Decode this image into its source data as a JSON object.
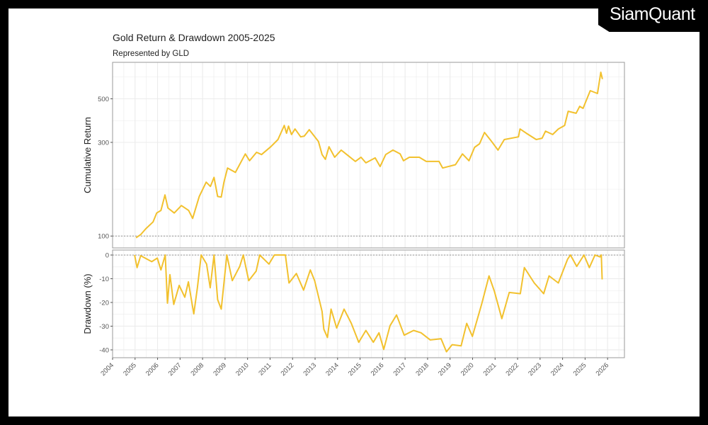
{
  "logo": {
    "text": "SiamQuant"
  },
  "chart_data": [
    {
      "type": "line",
      "title": "Gold Return & Drawdown 2005-2025",
      "subtitle": "Represented by GLD",
      "ylabel": "Cumulative Return",
      "xlabel": "",
      "yscale": "log",
      "ylim": [
        87,
        767
      ],
      "xlim": [
        2004,
        2026.75
      ],
      "yticks": [
        100,
        300,
        500
      ],
      "reference_line": 100,
      "grid": true,
      "color": "#F2C12E",
      "x": [
        2005.04,
        2005.26,
        2005.48,
        2005.8,
        2005.96,
        2006.15,
        2006.33,
        2006.46,
        2006.74,
        2007.06,
        2007.38,
        2007.56,
        2007.85,
        2008.16,
        2008.35,
        2008.51,
        2008.67,
        2008.83,
        2008.95,
        2009.11,
        2009.46,
        2009.9,
        2010.09,
        2010.4,
        2010.62,
        2011.03,
        2011.35,
        2011.63,
        2011.73,
        2011.82,
        2011.95,
        2012.11,
        2012.36,
        2012.52,
        2012.74,
        2013.15,
        2013.31,
        2013.46,
        2013.62,
        2013.87,
        2014.16,
        2014.41,
        2014.79,
        2015.04,
        2015.26,
        2015.67,
        2015.89,
        2016.14,
        2016.46,
        2016.78,
        2016.93,
        2017.19,
        2017.63,
        2017.94,
        2018.51,
        2018.67,
        2019.24,
        2019.55,
        2019.84,
        2020.09,
        2020.31,
        2020.53,
        2020.81,
        2021.13,
        2021.41,
        2022.04,
        2022.11,
        2022.39,
        2022.83,
        2023.09,
        2023.24,
        2023.56,
        2023.81,
        2024.09,
        2024.25,
        2024.6,
        2024.76,
        2024.91,
        2025.23,
        2025.55,
        2025.7,
        2025.77
      ],
      "y": [
        98,
        102,
        109,
        118,
        131,
        135,
        162,
        139,
        131,
        143,
        135,
        123,
        159,
        188,
        179,
        199,
        159,
        158,
        188,
        222,
        211,
        262,
        242,
        267,
        260,
        285,
        310,
        366,
        334,
        363,
        329,
        351,
        320,
        323,
        348,
        303,
        260,
        246,
        285,
        252,
        274,
        260,
        240,
        252,
        236,
        250,
        226,
        260,
        274,
        262,
        242,
        252,
        252,
        240,
        240,
        222,
        231,
        262,
        242,
        283,
        295,
        337,
        307,
        274,
        310,
        320,
        351,
        334,
        310,
        315,
        342,
        329,
        351,
        366,
        432,
        422,
        458,
        447,
        550,
        532,
        683,
        630
      ]
    },
    {
      "type": "line",
      "ylabel": "Drawdown (%)",
      "xlabel": "",
      "ylim": [
        -43.3,
        2.1
      ],
      "xlim": [
        2004,
        2026.75
      ],
      "yticks": [
        0,
        -10,
        -20,
        -30,
        -40
      ],
      "xticks": [
        "2004",
        "2005",
        "2006",
        "2007",
        "2008",
        "2009",
        "2010",
        "2011",
        "2012",
        "2013",
        "2014",
        "2015",
        "2016",
        "2017",
        "2018",
        "2019",
        "2020",
        "2021",
        "2022",
        "2023",
        "2024",
        "2025",
        "2026"
      ],
      "reference_line": 0,
      "grid": true,
      "color": "#F2C12E",
      "x": [
        2004.98,
        2005.09,
        2005.25,
        2005.74,
        2005.99,
        2006.15,
        2006.34,
        2006.44,
        2006.55,
        2006.72,
        2006.96,
        2007.21,
        2007.37,
        2007.61,
        2007.77,
        2007.94,
        2008.18,
        2008.34,
        2008.51,
        2008.67,
        2008.83,
        2009.08,
        2009.32,
        2009.65,
        2009.81,
        2010.05,
        2010.38,
        2010.54,
        2010.95,
        2011.19,
        2011.68,
        2011.84,
        2012.17,
        2012.49,
        2012.79,
        2012.98,
        2013.31,
        2013.39,
        2013.55,
        2013.71,
        2013.96,
        2014.29,
        2014.61,
        2014.94,
        2015.26,
        2015.59,
        2015.84,
        2016.05,
        2016.33,
        2016.62,
        2016.96,
        2017.38,
        2017.71,
        2018.12,
        2018.6,
        2018.84,
        2019.09,
        2019.49,
        2019.74,
        2019.99,
        2020.4,
        2020.73,
        2020.97,
        2021.3,
        2021.63,
        2022.12,
        2022.3,
        2022.74,
        2023.16,
        2023.4,
        2023.81,
        2024.22,
        2024.35,
        2024.63,
        2024.95,
        2025.19,
        2025.44,
        2025.66,
        2025.72,
        2025.76
      ],
      "y": [
        0,
        -5.3,
        -0.3,
        -2.8,
        -1.3,
        -6.3,
        0,
        -20.3,
        -8.3,
        -20.8,
        -12.8,
        -17.8,
        -11.3,
        -24.8,
        -13.8,
        0,
        -3.8,
        -13.8,
        0,
        -18.8,
        -22.8,
        0,
        -10.8,
        -4.8,
        0,
        -10.8,
        -6.8,
        0,
        -3.8,
        0,
        0,
        -11.8,
        -7.8,
        -14.8,
        -6.3,
        -10.8,
        -23.8,
        -31.3,
        -34.8,
        -22.8,
        -30.8,
        -22.8,
        -28.8,
        -36.8,
        -31.8,
        -36.8,
        -32.8,
        -39.8,
        -29.8,
        -25.3,
        -33.8,
        -31.8,
        -32.8,
        -35.8,
        -35.3,
        -40.8,
        -37.8,
        -38.3,
        -28.8,
        -34.3,
        -20.8,
        -8.8,
        -15.3,
        -26.8,
        -15.8,
        -16.3,
        -5.3,
        -11.8,
        -16.3,
        -8.8,
        -11.8,
        -1.8,
        0,
        -4.8,
        0,
        -5.3,
        0,
        -0.8,
        0,
        -10.3
      ]
    }
  ]
}
